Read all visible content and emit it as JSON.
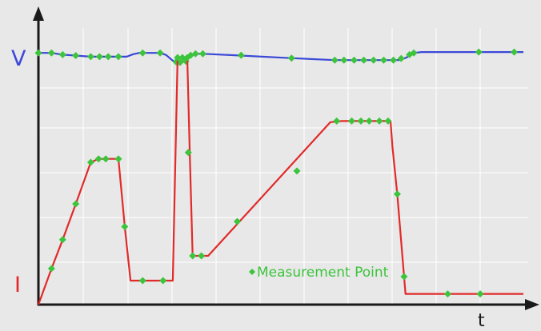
{
  "chart_data": {
    "type": "line",
    "title": "",
    "xlabel": "t",
    "ylabels": {
      "voltage": "V",
      "current": "I"
    },
    "legend": {
      "label": "Measurement Point",
      "marker": "diamond",
      "placement": "bottom-center"
    },
    "xlim": [
      0,
      100
    ],
    "ylim": [
      0,
      100
    ],
    "grid": true,
    "colors": {
      "background": "#e8e8e8",
      "grid": "#ffffff",
      "axis": "#1a1a1a",
      "voltage_line": "#3b48d8",
      "current_line": "#e22a2a",
      "marker": "#3cc43c",
      "legend_text": "#3cc43c",
      "v_label": "#3b48d8",
      "i_label": "#e22a2a",
      "t_label": "#1a1a1a"
    },
    "series": [
      {
        "key": "voltage",
        "line": [
          [
            0,
            87.2
          ],
          [
            2.7,
            87.2
          ],
          [
            5.0,
            86.6
          ],
          [
            7.7,
            86.3
          ],
          [
            10.8,
            85.9
          ],
          [
            16.5,
            85.9
          ],
          [
            18.2,
            85.9
          ],
          [
            19.6,
            86.8
          ],
          [
            20.8,
            87.2
          ],
          [
            25.1,
            87.2
          ],
          [
            26.3,
            86.5
          ],
          [
            28.0,
            84.1
          ],
          [
            29.2,
            83.9
          ],
          [
            30.4,
            84.3
          ],
          [
            31.0,
            86.1
          ],
          [
            32.1,
            86.9
          ],
          [
            33.9,
            86.9
          ],
          [
            40.5,
            86.4
          ],
          [
            52.1,
            85.4
          ],
          [
            61.1,
            84.7
          ],
          [
            74.3,
            84.7
          ],
          [
            75.8,
            85.5
          ],
          [
            77.4,
            87.2
          ],
          [
            79.0,
            87.5
          ],
          [
            100,
            87.5
          ]
        ],
        "points": [
          [
            0,
            87.2
          ],
          [
            2.7,
            87.2
          ],
          [
            5.0,
            86.6
          ],
          [
            7.7,
            86.3
          ],
          [
            10.8,
            85.9
          ],
          [
            12.6,
            85.9
          ],
          [
            14.4,
            85.9
          ],
          [
            16.5,
            85.9
          ],
          [
            21.5,
            87.2
          ],
          [
            25.1,
            87.2
          ],
          [
            28.4,
            84.1
          ],
          [
            29.2,
            83.9
          ],
          [
            30.4,
            84.3
          ],
          [
            31.4,
            86.4
          ],
          [
            32.4,
            86.9
          ],
          [
            33.9,
            86.9
          ],
          [
            41.8,
            86.4
          ],
          [
            52.2,
            85.4
          ],
          [
            61.1,
            84.7
          ],
          [
            63.0,
            84.7
          ],
          [
            65.1,
            84.7
          ],
          [
            67.1,
            84.7
          ],
          [
            69.1,
            84.7
          ],
          [
            71.2,
            84.7
          ],
          [
            73.2,
            84.7
          ],
          [
            74.8,
            85.3
          ],
          [
            76.5,
            86.6
          ],
          [
            77.4,
            87.2
          ],
          [
            90.8,
            87.5
          ],
          [
            98.1,
            87.5
          ]
        ]
      },
      {
        "key": "current",
        "line": [
          [
            0,
            0
          ],
          [
            2.7,
            12.5
          ],
          [
            5.0,
            22.5
          ],
          [
            7.7,
            34.9
          ],
          [
            10.8,
            49.3
          ],
          [
            12.4,
            50.5
          ],
          [
            16.5,
            50.5
          ],
          [
            17.8,
            27.0
          ],
          [
            19.0,
            8.3
          ],
          [
            27.7,
            8.3
          ],
          [
            28.7,
            85.6
          ],
          [
            30.7,
            85.6
          ],
          [
            31.2,
            52.7
          ],
          [
            31.8,
            16.9
          ],
          [
            35.0,
            16.9
          ],
          [
            60.2,
            63.2
          ],
          [
            62.6,
            63.6
          ],
          [
            72.6,
            63.6
          ],
          [
            73.0,
            54.6
          ],
          [
            74.0,
            38.3
          ],
          [
            75.4,
            9.7
          ],
          [
            75.7,
            3.7
          ],
          [
            100,
            3.7
          ]
        ],
        "points": [
          [
            2.7,
            12.5
          ],
          [
            5.0,
            22.5
          ],
          [
            7.7,
            34.9
          ],
          [
            10.8,
            49.3
          ],
          [
            12.4,
            50.5
          ],
          [
            13.9,
            50.5
          ],
          [
            16.5,
            50.5
          ],
          [
            17.8,
            27.0
          ],
          [
            21.5,
            8.3
          ],
          [
            25.7,
            8.3
          ],
          [
            28.7,
            85.6
          ],
          [
            29.7,
            85.6
          ],
          [
            30.7,
            85.6
          ],
          [
            30.9,
            52.7
          ],
          [
            31.8,
            16.9
          ],
          [
            33.6,
            16.9
          ],
          [
            41.0,
            28.8
          ],
          [
            53.3,
            46.3
          ],
          [
            61.5,
            63.6
          ],
          [
            64.6,
            63.6
          ],
          [
            66.5,
            63.6
          ],
          [
            68.2,
            63.6
          ],
          [
            70.3,
            63.6
          ],
          [
            72.1,
            63.6
          ],
          [
            74.0,
            38.3
          ],
          [
            75.4,
            9.7
          ],
          [
            84.4,
            3.7
          ],
          [
            91.1,
            3.7
          ]
        ]
      }
    ]
  }
}
